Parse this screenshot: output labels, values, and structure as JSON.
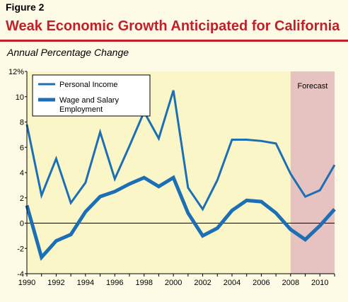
{
  "header": {
    "figure_label": "Figure 2",
    "title": "Weak Economic Growth Anticipated for California",
    "subtitle": "Annual Percentage Change"
  },
  "colors": {
    "title": "#c0202a",
    "line": "#1c6fb5",
    "forecast_band": "#e6c3c0",
    "background": "#fdfbe6",
    "plot_background": "#fbf6c8"
  },
  "chart_data": {
    "type": "line",
    "x": [
      1990,
      1991,
      1992,
      1993,
      1994,
      1995,
      1996,
      1997,
      1998,
      1999,
      2000,
      2001,
      2002,
      2003,
      2004,
      2005,
      2006,
      2007,
      2008,
      2009,
      2010,
      2011
    ],
    "x_tick_labels": [
      "1990",
      "1992",
      "1994",
      "1996",
      "1998",
      "2000",
      "2002",
      "2004",
      "2006",
      "2008",
      "2010"
    ],
    "y_tick_labels": [
      "12%",
      "10",
      "8",
      "6",
      "4",
      "2",
      "0",
      "-2",
      "-4"
    ],
    "ylim": [
      -4,
      12
    ],
    "xlim": [
      1990,
      2011
    ],
    "forecast_region": {
      "label": "Forecast",
      "x_start": 2008,
      "x_end": 2011
    },
    "series": [
      {
        "name": "Personal Income",
        "values": [
          7.8,
          2.2,
          5.1,
          1.6,
          3.2,
          7.2,
          3.5,
          6.1,
          8.8,
          6.7,
          10.5,
          2.8,
          1.1,
          3.4,
          6.6,
          6.6,
          6.5,
          6.3,
          3.9,
          2.1,
          2.6,
          4.6
        ],
        "stroke": 3
      },
      {
        "name": "Wage and Salary\nEmployment",
        "values": [
          1.4,
          -2.7,
          -1.4,
          -0.9,
          0.9,
          2.1,
          2.5,
          3.1,
          3.6,
          2.9,
          3.6,
          0.8,
          -1.0,
          -0.4,
          1.0,
          1.8,
          1.7,
          0.8,
          -0.5,
          -1.3,
          -0.2,
          1.1
        ],
        "stroke": 5
      }
    ],
    "legend": {
      "position": "top-left",
      "entries": [
        "Personal Income",
        "Wage and Salary",
        "Employment"
      ]
    },
    "grid": false
  }
}
